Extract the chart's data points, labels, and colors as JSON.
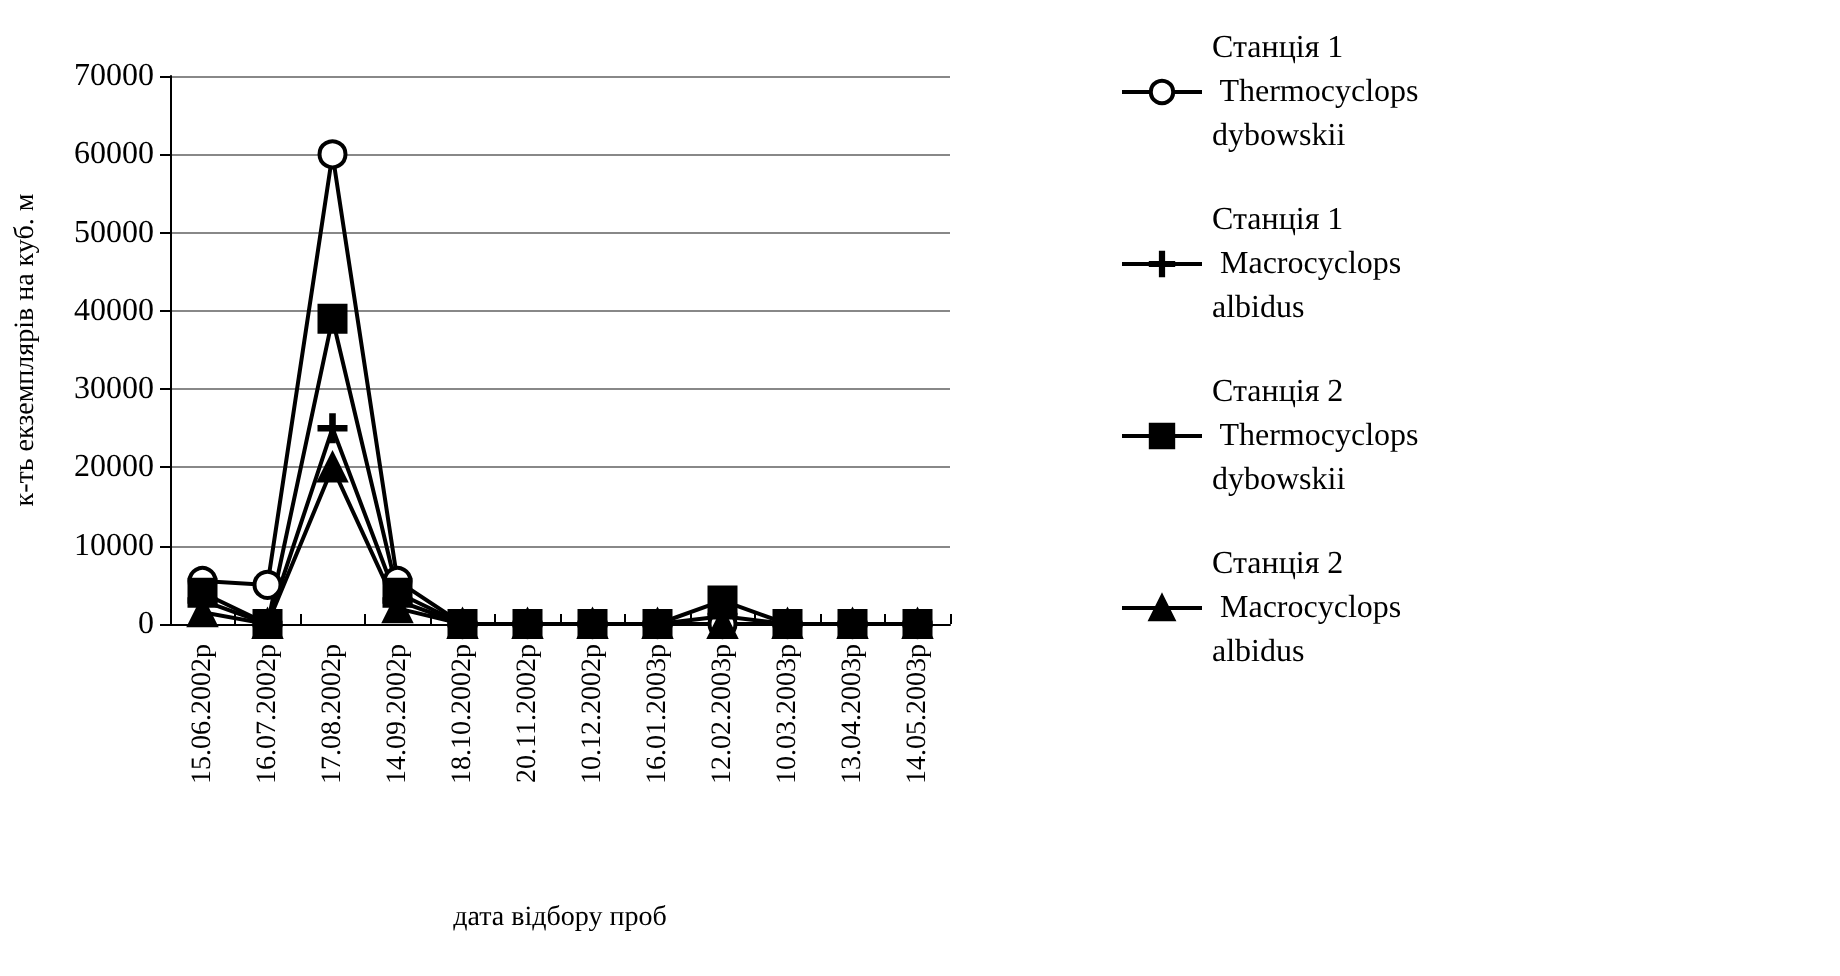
{
  "chart_data": {
    "type": "line",
    "xlabel": "дата відбору проб",
    "ylabel": "к-ть екземплярів на куб. м",
    "categories": [
      "15.06.2002р",
      "16.07.2002р",
      "17.08.2002р",
      "14.09.2002р",
      "18.10.2002р",
      "20.11.2002р",
      "10.12.2002р",
      "16.01.2003р",
      "12.02.2003р",
      "10.03.2003р",
      "13.04.2003р",
      "14.05.2003р"
    ],
    "series": [
      {
        "name": "Станція 1 Thermocyclops dybowskii",
        "color": "#000000",
        "marker": "circle",
        "values": [
          5500,
          5000,
          60000,
          5500,
          0,
          0,
          0,
          0,
          0,
          0,
          0,
          0
        ]
      },
      {
        "name": "Станція 1 Macrocyclops albidus",
        "color": "#000000",
        "marker": "cross",
        "values": [
          3000,
          0,
          25000,
          3000,
          0,
          0,
          0,
          0,
          1000,
          0,
          0,
          0
        ]
      },
      {
        "name": "Станція 2 Thermocyclops dybowskii",
        "color": "#000000",
        "marker": "square",
        "values": [
          4000,
          0,
          39000,
          4000,
          0,
          0,
          0,
          0,
          3000,
          0,
          0,
          0
        ]
      },
      {
        "name": "Станція 2 Macrocyclops albidus",
        "color": "#000000",
        "marker": "triangle",
        "values": [
          1500,
          0,
          20000,
          2000,
          0,
          0,
          0,
          0,
          0,
          0,
          0,
          0
        ]
      }
    ],
    "ylim": [
      0,
      70000
    ],
    "yticks": [
      0,
      10000,
      20000,
      30000,
      40000,
      50000,
      60000,
      70000
    ],
    "grid": "y",
    "legend": "right",
    "line_style": "solid"
  }
}
